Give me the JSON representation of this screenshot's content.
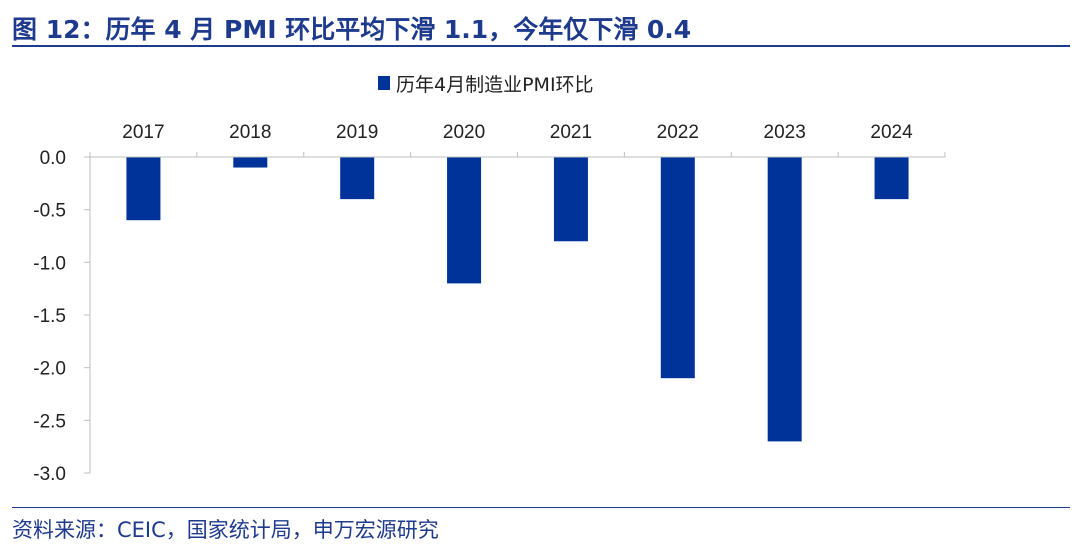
{
  "header": {
    "title": "图 12：历年 4 月 PMI 环比平均下滑 1.1，今年仅下滑 0.4"
  },
  "footer": {
    "source": "资料来源：CEIC，国家统计局，申万宏源研究"
  },
  "colors": {
    "bar": "#003399",
    "accent": "#1e3a8c",
    "axis": "#bfbfbf"
  },
  "chart_data": {
    "type": "bar",
    "categories": [
      "2017",
      "2018",
      "2019",
      "2020",
      "2021",
      "2022",
      "2023",
      "2024"
    ],
    "series": [
      {
        "name": "历年4月制造业PMI环比",
        "values": [
          -0.6,
          -0.1,
          -0.4,
          -1.2,
          -0.8,
          -2.1,
          -2.7,
          -0.4
        ]
      }
    ],
    "ylim": [
      -3.0,
      0.0
    ],
    "yticks": [
      "0.0",
      "-0.5",
      "-1.0",
      "-1.5",
      "-2.0",
      "-2.5",
      "-3.0"
    ],
    "legend_position": "top-center",
    "category_labels_position": "top",
    "grid": false
  }
}
